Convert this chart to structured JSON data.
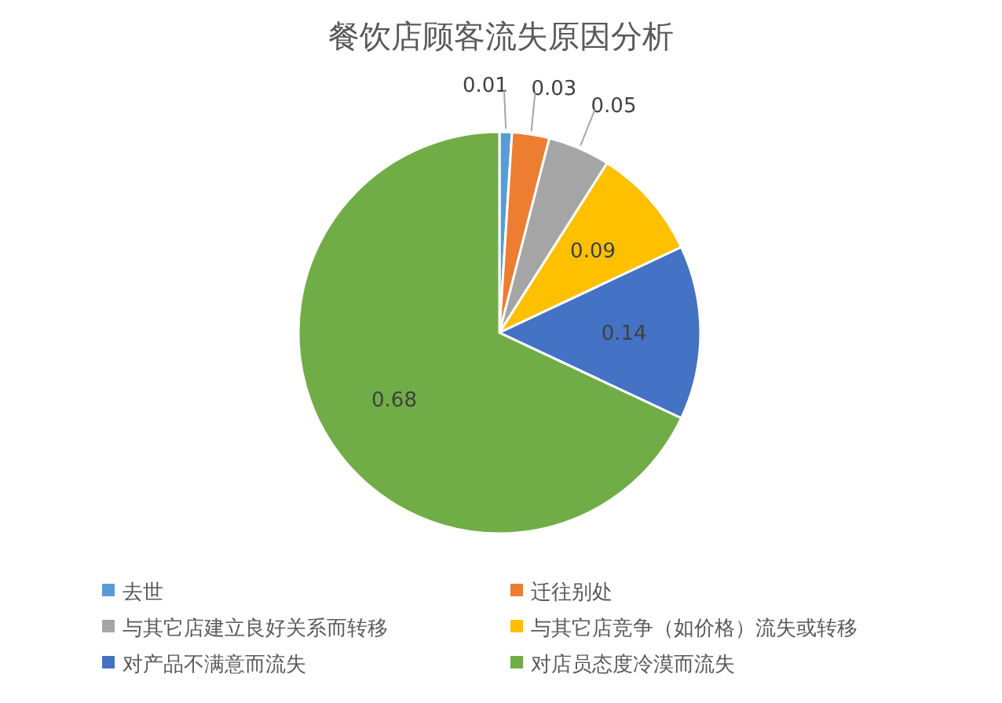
{
  "chart_data": {
    "type": "pie",
    "title": "餐饮店顾客流失原因分析",
    "categories": [
      "去世",
      "迁往别处",
      "与其它店建立良好关系而转移",
      "与其它店竞争（如价格）流失或转移",
      "对产品不满意而流失",
      "对店员态度冷漠而流失"
    ],
    "values": [
      0.01,
      0.03,
      0.05,
      0.09,
      0.14,
      0.68
    ],
    "colors": [
      "#5b9bd5",
      "#ed7d31",
      "#a5a5a5",
      "#ffc000",
      "#4472c4",
      "#70ad47"
    ],
    "data_labels": true,
    "legend": "bottom"
  }
}
